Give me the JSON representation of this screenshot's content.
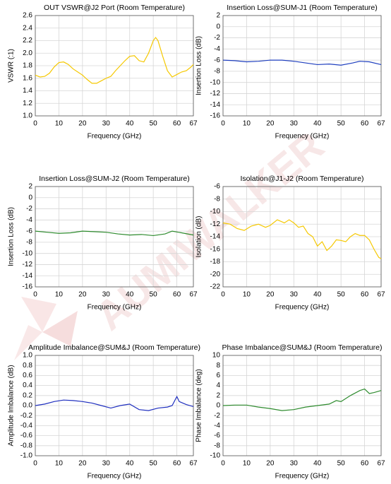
{
  "watermark": "AUMIWALKER",
  "chart_data": [
    {
      "type": "line",
      "title": "OUT VSWR@J2 Port (Room Temperature)",
      "x_label": "Frequency (GHz)",
      "y_label": "VSWR (:1)",
      "xlim": [
        0,
        67
      ],
      "xticks": [
        0,
        10,
        20,
        30,
        40,
        50,
        60,
        67
      ],
      "ylim": [
        1.0,
        2.6
      ],
      "yticks": [
        {
          "value": 1.0,
          "label": "1.0"
        },
        1.2,
        1.4,
        1.6,
        1.8,
        {
          "value": 2.0,
          "label": "2.0"
        },
        2.2,
        2.4,
        2.6
      ],
      "grid": true,
      "x": [
        0,
        2,
        4,
        6,
        8,
        10,
        12,
        14,
        16,
        18,
        20,
        22,
        24,
        26,
        28,
        30,
        32,
        34,
        36,
        38,
        40,
        42,
        44,
        46,
        48,
        50,
        51,
        52,
        54,
        56,
        58,
        60,
        62,
        64,
        66,
        67
      ],
      "series": [
        {
          "color": "#f5c800",
          "values": [
            1.65,
            1.62,
            1.63,
            1.68,
            1.78,
            1.85,
            1.86,
            1.82,
            1.75,
            1.7,
            1.65,
            1.58,
            1.52,
            1.52,
            1.56,
            1.6,
            1.63,
            1.72,
            1.8,
            1.88,
            1.95,
            1.96,
            1.88,
            1.86,
            2.0,
            2.2,
            2.25,
            2.2,
            1.95,
            1.72,
            1.62,
            1.66,
            1.7,
            1.72,
            1.78,
            1.82
          ]
        }
      ]
    },
    {
      "type": "line",
      "title": "Insertion Loss@SUM-J1 (Room Temperature)",
      "x_label": "Frequency (GHz)",
      "y_label": "Insertion Loss (dB)",
      "xlim": [
        0,
        67
      ],
      "xticks": [
        0,
        10,
        20,
        30,
        40,
        50,
        60,
        67
      ],
      "ylim": [
        -16,
        2
      ],
      "yticks": [
        -16,
        -14,
        -12,
        -10,
        -8,
        -6,
        -4,
        -2,
        0,
        2
      ],
      "grid": true,
      "x": [
        0,
        5,
        10,
        15,
        20,
        25,
        30,
        35,
        40,
        45,
        50,
        55,
        58,
        62,
        67
      ],
      "series": [
        {
          "color": "#1f3fbf",
          "values": [
            -6.0,
            -6.1,
            -6.3,
            -6.2,
            -6.0,
            -6.0,
            -6.2,
            -6.5,
            -6.8,
            -6.7,
            -6.9,
            -6.5,
            -6.2,
            -6.3,
            -6.8
          ]
        }
      ]
    },
    {
      "type": "line",
      "title": "Insertion Loss@SUM-J2 (Room Temperature)",
      "x_label": "Frequency (GHz)",
      "y_label": "Insertion Loss (dB)",
      "xlim": [
        0,
        67
      ],
      "xticks": [
        0,
        10,
        20,
        30,
        40,
        50,
        60,
        67
      ],
      "ylim": [
        -16,
        2
      ],
      "yticks": [
        -16,
        -14,
        -12,
        -10,
        -8,
        -6,
        -4,
        -2,
        0,
        2
      ],
      "grid": true,
      "x": [
        0,
        5,
        10,
        15,
        20,
        25,
        30,
        35,
        40,
        45,
        50,
        55,
        58,
        62,
        67
      ],
      "series": [
        {
          "color": "#2e8b2e",
          "values": [
            -6.0,
            -6.2,
            -6.4,
            -6.3,
            -6.0,
            -6.1,
            -6.2,
            -6.5,
            -6.7,
            -6.6,
            -6.8,
            -6.5,
            -6.0,
            -6.3,
            -6.7
          ]
        }
      ]
    },
    {
      "type": "line",
      "title": "Isolation@J1-J2 (Room Temperature)",
      "x_label": "Frequency (GHz)",
      "y_label": "Isolation (dB)",
      "xlim": [
        0,
        67
      ],
      "xticks": [
        0,
        10,
        20,
        30,
        40,
        50,
        60,
        67
      ],
      "ylim": [
        -22,
        -6
      ],
      "yticks": [
        -22,
        -20,
        -18,
        -16,
        -14,
        -12,
        -10,
        -8,
        -6
      ],
      "grid": true,
      "x": [
        0,
        3,
        6,
        9,
        12,
        15,
        18,
        20,
        23,
        26,
        28,
        30,
        32,
        34,
        36,
        38,
        40,
        42,
        44,
        46,
        48,
        50,
        52,
        54,
        56,
        58,
        60,
        62,
        64,
        66,
        67
      ],
      "series": [
        {
          "color": "#f5c800",
          "values": [
            -11.8,
            -12.0,
            -12.7,
            -13.0,
            -12.3,
            -12.0,
            -12.5,
            -12.2,
            -11.3,
            -11.8,
            -11.3,
            -11.8,
            -12.5,
            -12.3,
            -13.5,
            -14.0,
            -15.5,
            -14.8,
            -16.2,
            -15.5,
            -14.5,
            -14.6,
            -14.8,
            -14.0,
            -13.5,
            -13.8,
            -13.8,
            -14.5,
            -16.0,
            -17.3,
            -17.5
          ]
        }
      ]
    },
    {
      "type": "line",
      "title": "Amplitude Imbalance@SUM&J (Room Temperature)",
      "x_label": "Frequency (GHz)",
      "y_label": "Amplitude Imbalance (dB)",
      "xlim": [
        0,
        67
      ],
      "xticks": [
        0,
        10,
        20,
        30,
        40,
        50,
        60,
        67
      ],
      "ylim": [
        -1.0,
        1.0
      ],
      "yticks": [
        {
          "value": -1.0,
          "label": "-1.0"
        },
        -0.8,
        -0.6,
        -0.4,
        -0.2,
        {
          "value": 0.0,
          "label": "0.0"
        },
        0.2,
        0.4,
        0.6,
        0.8,
        {
          "value": 1.0,
          "label": "1.0"
        }
      ],
      "grid": true,
      "x": [
        0,
        4,
        8,
        12,
        16,
        20,
        24,
        28,
        32,
        36,
        40,
        44,
        48,
        52,
        56,
        58,
        60,
        61,
        64,
        67
      ],
      "series": [
        {
          "color": "#1f2fbf",
          "values": [
            0.0,
            0.03,
            0.08,
            0.11,
            0.1,
            0.08,
            0.05,
            0.0,
            -0.05,
            0.0,
            0.03,
            -0.08,
            -0.1,
            -0.05,
            -0.03,
            0.0,
            0.18,
            0.08,
            0.02,
            -0.02
          ]
        }
      ]
    },
    {
      "type": "line",
      "title": "Phase Imbalance@SUM&J (Room Temperature)",
      "x_label": "Frequency (GHz)",
      "y_label": "Phase Imbalance (deg)",
      "xlim": [
        0,
        67
      ],
      "xticks": [
        0,
        10,
        20,
        30,
        40,
        50,
        60,
        67
      ],
      "ylim": [
        -10,
        10
      ],
      "yticks": [
        -10,
        -8,
        -6,
        -4,
        -2,
        0,
        2,
        4,
        6,
        8,
        10
      ],
      "grid": true,
      "x": [
        0,
        5,
        10,
        15,
        20,
        25,
        30,
        35,
        40,
        45,
        48,
        50,
        54,
        58,
        60,
        62,
        64,
        67
      ],
      "series": [
        {
          "color": "#2e8b2e",
          "values": [
            0,
            0.1,
            0.1,
            -0.3,
            -0.6,
            -1.0,
            -0.8,
            -0.3,
            0,
            0.3,
            1.0,
            0.8,
            2,
            3,
            3.3,
            2.4,
            2.6,
            3
          ]
        }
      ]
    }
  ]
}
